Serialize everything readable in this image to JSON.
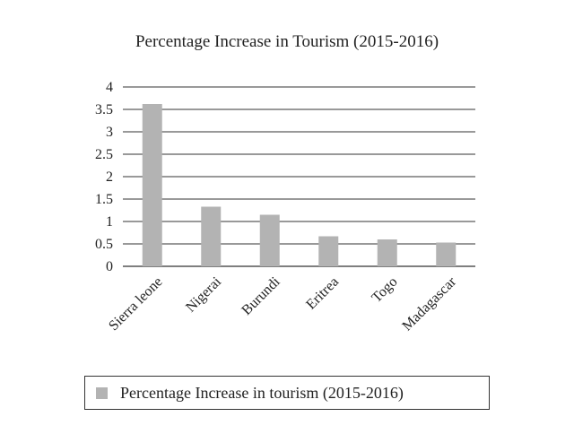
{
  "chart_data": {
    "type": "bar",
    "title": "Percentage Increase in Tourism (2015-2016)",
    "categories": [
      "Sierra leone",
      "Nigerai",
      "Burundi",
      "Eritrea",
      "Togo",
      "Madagascar"
    ],
    "series": [
      {
        "name": "Percentage Increase in tourism (2015-2016)",
        "values": [
          3.62,
          1.33,
          1.15,
          0.67,
          0.6,
          0.53
        ]
      }
    ],
    "yticks": [
      "0",
      "0.5",
      "1",
      "1.5",
      "2",
      "2.5",
      "3",
      "3.5",
      "4"
    ],
    "ylim": [
      0,
      4
    ],
    "xlabel": "",
    "ylabel": "",
    "grid": true,
    "legend_position": "bottom",
    "bar_color": "#b3b3b3"
  }
}
